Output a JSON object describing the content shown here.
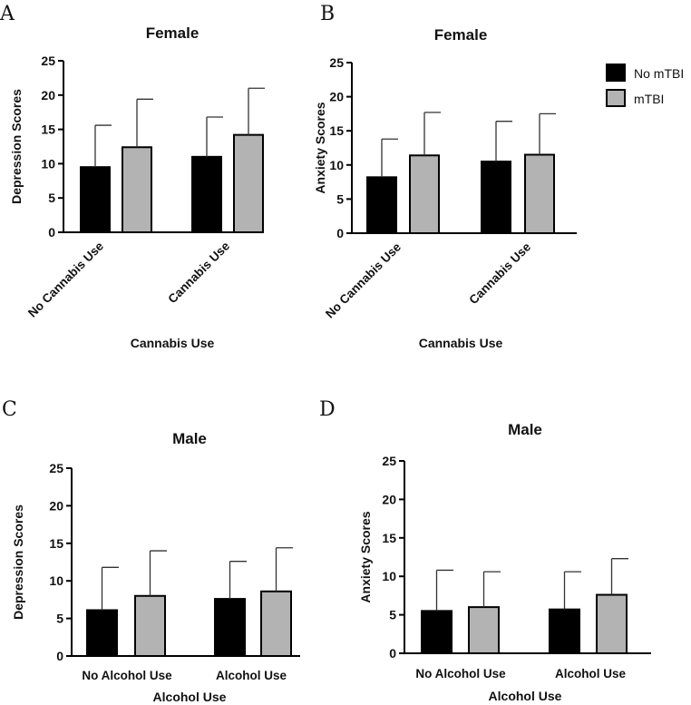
{
  "legend": [
    {
      "label": "No mTBI",
      "color": "#000000"
    },
    {
      "label": "mTBI",
      "color": "#b3b3b3"
    }
  ],
  "chart_data": [
    {
      "panel": "A",
      "type": "bar",
      "title": "Female",
      "xlabel": "Cannabis Use",
      "ylabel": "Depression Scores",
      "categories": [
        "No Cannabis Use",
        "Cannabis Use"
      ],
      "series": [
        {
          "name": "No mTBI",
          "values": [
            9.5,
            11.0
          ],
          "error": [
            6.1,
            5.8
          ]
        },
        {
          "name": "mTBI",
          "values": [
            12.4,
            14.2
          ],
          "error": [
            7.0,
            6.8
          ]
        }
      ],
      "ylim": [
        0,
        25
      ],
      "yticks": [
        0,
        5,
        10,
        15,
        20,
        25
      ],
      "rotated_labels": true
    },
    {
      "panel": "B",
      "type": "bar",
      "title": "Female",
      "xlabel": "Cannabis Use",
      "ylabel": "Anxiety Scores",
      "categories": [
        "No Cannabis Use",
        "Cannabis Use"
      ],
      "series": [
        {
          "name": "No mTBI",
          "values": [
            8.2,
            10.5
          ],
          "error": [
            5.6,
            5.9
          ]
        },
        {
          "name": "mTBI",
          "values": [
            11.4,
            11.5
          ],
          "error": [
            6.3,
            6.0
          ]
        }
      ],
      "ylim": [
        0,
        25
      ],
      "yticks": [
        0,
        5,
        10,
        15,
        20,
        25
      ],
      "rotated_labels": true
    },
    {
      "panel": "C",
      "type": "bar",
      "title": "Male",
      "xlabel": "Alcohol Use",
      "ylabel": "Depression Scores",
      "categories": [
        "No Alcohol Use",
        "Alcohol Use"
      ],
      "series": [
        {
          "name": "No mTBI",
          "values": [
            6.1,
            7.6
          ],
          "error": [
            5.7,
            5.0
          ]
        },
        {
          "name": "mTBI",
          "values": [
            8.0,
            8.6
          ],
          "error": [
            6.0,
            5.8
          ]
        }
      ],
      "ylim": [
        0,
        25
      ],
      "yticks": [
        0,
        5,
        10,
        15,
        20,
        25
      ],
      "rotated_labels": false
    },
    {
      "panel": "D",
      "type": "bar",
      "title": "Male",
      "xlabel": "Alcohol Use",
      "ylabel": "Anxiety Scores",
      "categories": [
        "No Alcohol Use",
        "Alcohol Use"
      ],
      "series": [
        {
          "name": "No mTBI",
          "values": [
            5.5,
            5.7
          ],
          "error": [
            5.3,
            4.9
          ]
        },
        {
          "name": "mTBI",
          "values": [
            6.0,
            7.6
          ],
          "error": [
            4.6,
            4.7
          ]
        }
      ],
      "ylim": [
        0,
        25
      ],
      "yticks": [
        0,
        5,
        10,
        15,
        20,
        25
      ],
      "rotated_labels": false
    }
  ]
}
